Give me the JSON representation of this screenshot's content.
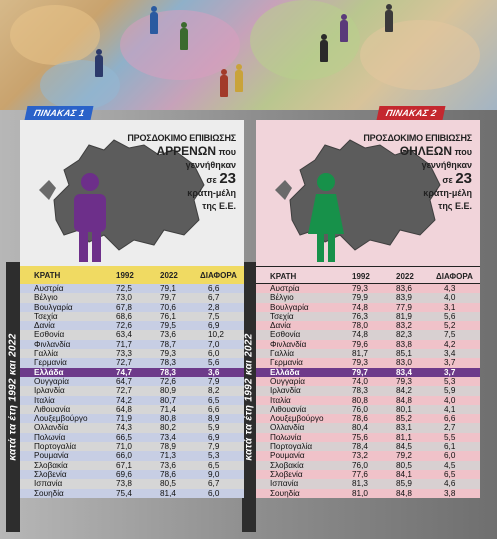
{
  "table1": {
    "tag": "ΠΙΝΑΚΑΣ 1",
    "title": {
      "line1": "ΠΡΟΣΔΟΚΙΜΟ ΕΠΙΒΙΩΣΗΣ",
      "line2": "ΑΡΡΕΝΩΝ",
      "line2b": "που",
      "line3": "γεννήθηκαν",
      "line4a": "σε",
      "line4b": "23",
      "line5": "κράτη-μέλη",
      "line6": "της Ε.Ε."
    },
    "headers": [
      "ΚΡΑΤΗ",
      "1992",
      "2022",
      "ΔΙΑΦΟΡΑ"
    ],
    "person_color": "#6d2f8a",
    "rows": [
      [
        "Αυστρία",
        "72,5",
        "79,1",
        "6,6"
      ],
      [
        "Βέλγιο",
        "73,0",
        "79,7",
        "6,7"
      ],
      [
        "Βουλγαρία",
        "67,8",
        "70,6",
        "2,8"
      ],
      [
        "Τσεχία",
        "68,6",
        "76,1",
        "7,5"
      ],
      [
        "Δανία",
        "72,6",
        "79,5",
        "6,9"
      ],
      [
        "Εσθονία",
        "63,4",
        "73,6",
        "10,2"
      ],
      [
        "Φινλανδία",
        "71,7",
        "78,7",
        "7,0"
      ],
      [
        "Γαλλία",
        "73,3",
        "79,3",
        "6,0"
      ],
      [
        "Γερμανία",
        "72,7",
        "78,3",
        "5,6"
      ],
      [
        "Ελλάδα",
        "74,7",
        "78,3",
        "3,6"
      ],
      [
        "Ουγγαρία",
        "64,7",
        "72,6",
        "7,9"
      ],
      [
        "Ιρλανδία",
        "72,7",
        "80,9",
        "8,2"
      ],
      [
        "Ιταλία",
        "74,2",
        "80,7",
        "6,5"
      ],
      [
        "Λιθουανία",
        "64,8",
        "71,4",
        "6,6"
      ],
      [
        "Λουξεμβούργο",
        "71,9",
        "80,8",
        "8,9"
      ],
      [
        "Ολλανδία",
        "74,3",
        "80,2",
        "5,9"
      ],
      [
        "Πολωνία",
        "66,5",
        "73,4",
        "6,9"
      ],
      [
        "Πορτογαλία",
        "71,0",
        "78,9",
        "7,9"
      ],
      [
        "Ρουμανία",
        "66,0",
        "71,3",
        "5,3"
      ],
      [
        "Σλοβακία",
        "67,1",
        "73,6",
        "6,5"
      ],
      [
        "Σλοβενία",
        "69,6",
        "78,6",
        "9,0"
      ],
      [
        "Ισπανία",
        "73,8",
        "80,5",
        "6,7"
      ],
      [
        "Σουηδία",
        "75,4",
        "81,4",
        "6,0"
      ]
    ]
  },
  "table2": {
    "tag": "ΠΙΝΑΚΑΣ 2",
    "title": {
      "line1": "ΠΡΟΣΔΟΚΙΜΟ ΕΠΙΒΙΩΣΗΣ",
      "line2": "ΘΗΛΕΩΝ",
      "line2b": "που",
      "line3": "γεννήθηκαν",
      "line4a": "σε",
      "line4b": "23",
      "line5": "κράτη-μέλη",
      "line6": "της Ε.Ε."
    },
    "headers": [
      "ΚΡΑΤΗ",
      "1992",
      "2022",
      "ΔΙΑΦΟΡΑ"
    ],
    "person_color": "#17914a",
    "rows": [
      [
        "Αυστρία",
        "79,3",
        "83,6",
        "4,3"
      ],
      [
        "Βέλγιο",
        "79,9",
        "83,9",
        "4,0"
      ],
      [
        "Βουλγαρία",
        "74,8",
        "77,9",
        "3,1"
      ],
      [
        "Τσεχία",
        "76,3",
        "81,9",
        "5,6"
      ],
      [
        "Δανία",
        "78,0",
        "83,2",
        "5,2"
      ],
      [
        "Εσθονία",
        "74,8",
        "82,3",
        "7,5"
      ],
      [
        "Φινλανδία",
        "79,6",
        "83,8",
        "4,2"
      ],
      [
        "Γαλλία",
        "81,7",
        "85,1",
        "3,4"
      ],
      [
        "Γερμανία",
        "79,3",
        "83,0",
        "3,7"
      ],
      [
        "Ελλάδα",
        "79,7",
        "83,4",
        "3,7"
      ],
      [
        "Ουγγαρία",
        "74,0",
        "79,3",
        "5,3"
      ],
      [
        "Ιρλανδία",
        "78,3",
        "84,2",
        "5,9"
      ],
      [
        "Ιταλία",
        "80,8",
        "84,8",
        "4,0"
      ],
      [
        "Λιθουανία",
        "76,0",
        "80,1",
        "4,1"
      ],
      [
        "Λουξεμβούργο",
        "78,6",
        "85,2",
        "6,6"
      ],
      [
        "Ολλανδία",
        "80,4",
        "83,1",
        "2,7"
      ],
      [
        "Πολωνία",
        "75,6",
        "81,1",
        "5,5"
      ],
      [
        "Πορτογαλία",
        "78,4",
        "84,5",
        "6,1"
      ],
      [
        "Ρουμανία",
        "73,2",
        "79,2",
        "6,0"
      ],
      [
        "Σλοβακία",
        "76,0",
        "80,5",
        "4,5"
      ],
      [
        "Σλοβενία",
        "77,6",
        "84,1",
        "6,5"
      ],
      [
        "Ισπανία",
        "81,3",
        "85,9",
        "4,6"
      ],
      [
        "Σουηδία",
        "81,0",
        "84,8",
        "3,8"
      ]
    ]
  },
  "side_label": "κατά τα έτη 1992 και 2022",
  "highlight_country": "Ελλάδα"
}
